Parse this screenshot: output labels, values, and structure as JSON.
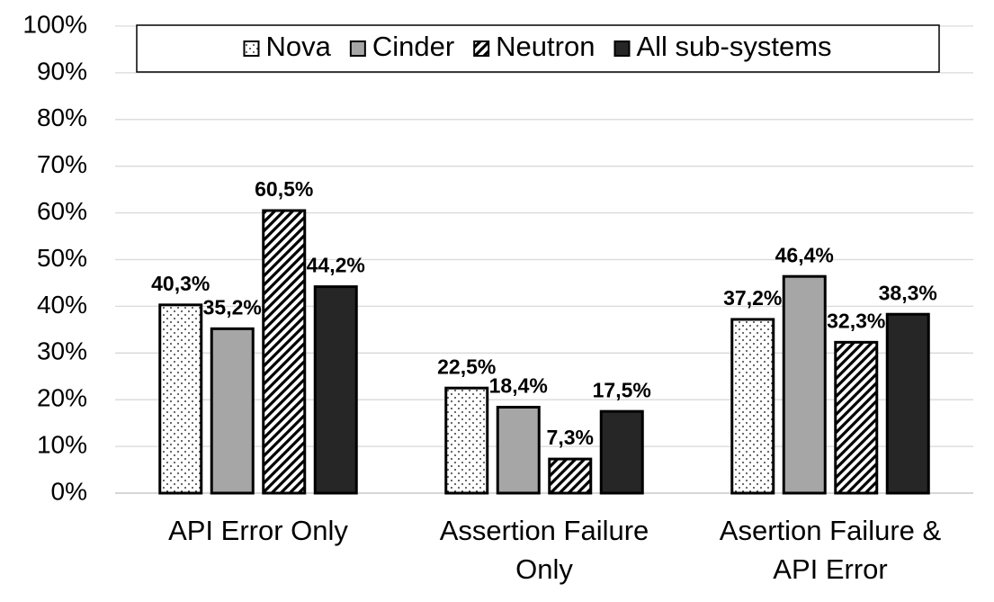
{
  "chart_data": {
    "type": "bar",
    "categories": [
      "API Error Only",
      "Assertion Failure Only",
      "Asertion Failure & API Error"
    ],
    "series": [
      {
        "name": "Nova",
        "color": "#ffffff",
        "pattern": "dots",
        "values": [
          40.3,
          22.5,
          37.2
        ],
        "value_labels": [
          "40,3%",
          "22,5%",
          "37,2%"
        ]
      },
      {
        "name": "Cinder",
        "color": "#a6a6a6",
        "pattern": "solid",
        "values": [
          35.2,
          18.4,
          46.4
        ],
        "value_labels": [
          "35,2%",
          "18,4%",
          "46,4%"
        ]
      },
      {
        "name": "Neutron",
        "color": "#ffffff",
        "pattern": "hatch",
        "values": [
          60.5,
          7.3,
          32.3
        ],
        "value_labels": [
          "60,5%",
          "7,3%",
          "32,3%"
        ]
      },
      {
        "name": "All sub-systems",
        "color": "#262626",
        "pattern": "solid",
        "values": [
          44.2,
          17.5,
          38.3
        ],
        "value_labels": [
          "44,2%",
          "17,5%",
          "38,3%"
        ]
      }
    ],
    "ylim": [
      0,
      100
    ],
    "yticks": [
      {
        "value": 0,
        "label": "0%"
      },
      {
        "value": 10,
        "label": "10%"
      },
      {
        "value": 20,
        "label": "20%"
      },
      {
        "value": 30,
        "label": "30%"
      },
      {
        "value": 40,
        "label": "40%"
      },
      {
        "value": 50,
        "label": "50%"
      },
      {
        "value": 60,
        "label": "60%"
      },
      {
        "value": 70,
        "label": "70%"
      },
      {
        "value": 80,
        "label": "80%"
      },
      {
        "value": 90,
        "label": "90%"
      },
      {
        "value": 100,
        "label": "100%"
      }
    ],
    "grid": true,
    "legend": "top"
  }
}
